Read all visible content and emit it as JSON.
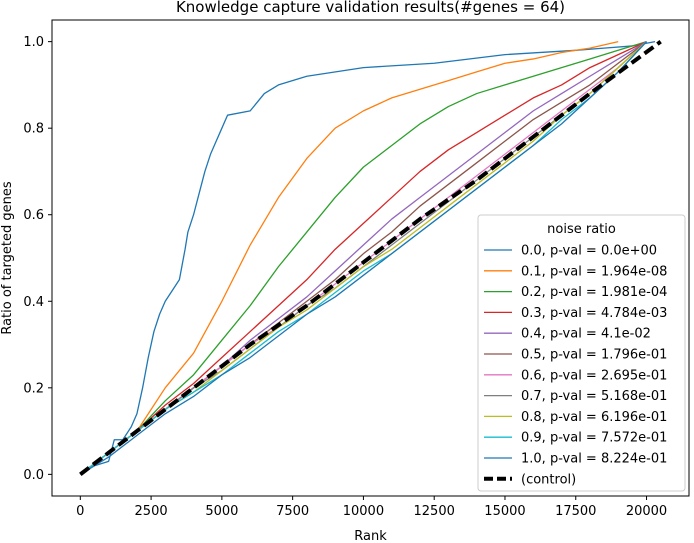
{
  "chart_data": {
    "type": "line",
    "title": "Knowledge capture validation results(#genes = 64)",
    "xlabel": "Rank",
    "ylabel": "Ratio of targeted genes",
    "xlim": [
      -1000,
      21500
    ],
    "ylim": [
      -0.05,
      1.05
    ],
    "xticks": [
      0,
      2500,
      5000,
      7500,
      10000,
      12500,
      15000,
      17500,
      20000
    ],
    "yticks": [
      0.0,
      0.2,
      0.4,
      0.6,
      0.8,
      1.0
    ],
    "legend": {
      "title": "noise ratio",
      "placement": "lower-right"
    },
    "grid": false,
    "series": [
      {
        "name": "0.0, p-val = 0.0e+00",
        "color": "#1f77b4",
        "x": [
          0,
          500,
          1000,
          1200,
          1500,
          1800,
          2000,
          2200,
          2400,
          2600,
          2800,
          3000,
          3200,
          3500,
          3700,
          3800,
          4000,
          4200,
          4400,
          4600,
          4800,
          5000,
          5200,
          6000,
          6500,
          7000,
          8000,
          10000,
          12500,
          15000,
          17500,
          18500,
          19500,
          20300
        ],
        "y": [
          0.0,
          0.02,
          0.03,
          0.08,
          0.08,
          0.11,
          0.14,
          0.2,
          0.27,
          0.33,
          0.37,
          0.4,
          0.42,
          0.45,
          0.52,
          0.56,
          0.6,
          0.65,
          0.7,
          0.74,
          0.77,
          0.8,
          0.83,
          0.84,
          0.88,
          0.9,
          0.92,
          0.94,
          0.95,
          0.97,
          0.98,
          0.985,
          0.99,
          1.0
        ]
      },
      {
        "name": "0.1, p-val = 1.964e-08",
        "color": "#ff7f0e",
        "x": [
          0,
          1000,
          2000,
          3000,
          4000,
          5000,
          6000,
          7000,
          8000,
          9000,
          10000,
          11000,
          12000,
          13000,
          14000,
          15000,
          16000,
          17000,
          18000,
          19000
        ],
        "y": [
          0.0,
          0.05,
          0.1,
          0.2,
          0.28,
          0.4,
          0.53,
          0.64,
          0.73,
          0.8,
          0.84,
          0.87,
          0.89,
          0.91,
          0.93,
          0.95,
          0.96,
          0.975,
          0.985,
          1.0
        ]
      },
      {
        "name": "0.2, p-val = 1.981e-04",
        "color": "#2ca02c",
        "x": [
          0,
          1000,
          2000,
          3000,
          4000,
          5000,
          6000,
          7000,
          8000,
          9000,
          10000,
          11000,
          12000,
          13000,
          14000,
          15000,
          16000,
          17000,
          18000,
          19000,
          20000
        ],
        "y": [
          0.0,
          0.05,
          0.1,
          0.17,
          0.23,
          0.31,
          0.39,
          0.48,
          0.56,
          0.64,
          0.71,
          0.76,
          0.81,
          0.85,
          0.88,
          0.9,
          0.92,
          0.94,
          0.96,
          0.98,
          1.0
        ]
      },
      {
        "name": "0.3, p-val = 4.784e-03",
        "color": "#d62728",
        "x": [
          0,
          1000,
          2000,
          3000,
          4000,
          5000,
          6000,
          7000,
          8000,
          9000,
          10000,
          11000,
          12000,
          13000,
          14000,
          15000,
          16000,
          17000,
          18000,
          19000,
          20000
        ],
        "y": [
          0.0,
          0.05,
          0.1,
          0.16,
          0.21,
          0.27,
          0.33,
          0.39,
          0.45,
          0.52,
          0.58,
          0.64,
          0.7,
          0.75,
          0.79,
          0.83,
          0.87,
          0.9,
          0.94,
          0.97,
          1.0
        ]
      },
      {
        "name": "0.4, p-val = 4.1e-02",
        "color": "#9467bd",
        "x": [
          0,
          1000,
          2000,
          3000,
          4000,
          5000,
          6000,
          7000,
          8000,
          9000,
          10000,
          11000,
          12000,
          13000,
          14000,
          15000,
          16000,
          17000,
          18000,
          19000,
          20000
        ],
        "y": [
          0.0,
          0.05,
          0.1,
          0.15,
          0.2,
          0.25,
          0.31,
          0.36,
          0.41,
          0.47,
          0.53,
          0.59,
          0.64,
          0.69,
          0.74,
          0.79,
          0.84,
          0.88,
          0.92,
          0.96,
          1.0
        ]
      },
      {
        "name": "0.5, p-val = 1.796e-01",
        "color": "#8c564b",
        "x": [
          0,
          1000,
          2000,
          3000,
          4000,
          5000,
          6000,
          7000,
          8000,
          9000,
          10000,
          11000,
          12000,
          13000,
          14000,
          15000,
          16000,
          17000,
          18000,
          19000,
          20000
        ],
        "y": [
          0.0,
          0.05,
          0.1,
          0.15,
          0.2,
          0.25,
          0.3,
          0.35,
          0.4,
          0.45,
          0.51,
          0.56,
          0.62,
          0.67,
          0.72,
          0.77,
          0.82,
          0.86,
          0.9,
          0.95,
          1.0
        ]
      },
      {
        "name": "0.6, p-val = 2.695e-01",
        "color": "#e377c2",
        "x": [
          0,
          1000,
          2000,
          3000,
          4000,
          5000,
          6000,
          7000,
          8000,
          9000,
          10000,
          11000,
          12000,
          13000,
          14000,
          15000,
          16000,
          17000,
          18000,
          19000,
          20000
        ],
        "y": [
          0.0,
          0.05,
          0.1,
          0.15,
          0.2,
          0.25,
          0.3,
          0.34,
          0.39,
          0.44,
          0.49,
          0.54,
          0.59,
          0.64,
          0.69,
          0.74,
          0.79,
          0.84,
          0.89,
          0.94,
          1.0
        ]
      },
      {
        "name": "0.7, p-val = 5.168e-01",
        "color": "#7f7f7f",
        "x": [
          0,
          1000,
          2000,
          3000,
          4000,
          5000,
          6000,
          7000,
          8000,
          9000,
          10000,
          11000,
          12000,
          13000,
          14000,
          15000,
          16000,
          17000,
          18000,
          19000,
          20000
        ],
        "y": [
          0.0,
          0.05,
          0.1,
          0.15,
          0.2,
          0.24,
          0.29,
          0.34,
          0.39,
          0.43,
          0.48,
          0.53,
          0.58,
          0.63,
          0.68,
          0.73,
          0.78,
          0.83,
          0.88,
          0.94,
          1.0
        ]
      },
      {
        "name": "0.8, p-val = 6.196e-01",
        "color": "#bcbd22",
        "x": [
          0,
          1000,
          2000,
          3000,
          4000,
          5000,
          6000,
          7000,
          8000,
          9000,
          10000,
          11000,
          12000,
          13000,
          14000,
          15000,
          16000,
          17000,
          18000,
          19000,
          20000
        ],
        "y": [
          0.0,
          0.05,
          0.1,
          0.15,
          0.19,
          0.24,
          0.29,
          0.34,
          0.38,
          0.43,
          0.48,
          0.52,
          0.57,
          0.62,
          0.67,
          0.72,
          0.77,
          0.83,
          0.88,
          0.94,
          1.0
        ]
      },
      {
        "name": "0.9, p-val = 7.572e-01",
        "color": "#17becf",
        "x": [
          0,
          1000,
          2000,
          3000,
          4000,
          5000,
          6000,
          7000,
          8000,
          9000,
          10000,
          11000,
          12000,
          13000,
          14000,
          15000,
          16000,
          17000,
          18000,
          19000,
          20000
        ],
        "y": [
          0.0,
          0.05,
          0.1,
          0.15,
          0.19,
          0.23,
          0.28,
          0.33,
          0.37,
          0.42,
          0.47,
          0.51,
          0.56,
          0.61,
          0.66,
          0.71,
          0.76,
          0.82,
          0.87,
          0.93,
          1.0
        ]
      },
      {
        "name": "1.0, p-val = 8.224e-01",
        "color": "#1f77b4",
        "x": [
          0,
          1000,
          2000,
          3000,
          4000,
          5000,
          6000,
          7000,
          8000,
          9000,
          10000,
          11000,
          12000,
          13000,
          14000,
          15000,
          16000,
          17000,
          18000,
          19000,
          20000
        ],
        "y": [
          0.0,
          0.04,
          0.09,
          0.14,
          0.18,
          0.23,
          0.27,
          0.32,
          0.37,
          0.41,
          0.46,
          0.51,
          0.56,
          0.61,
          0.66,
          0.71,
          0.76,
          0.81,
          0.87,
          0.93,
          1.0
        ]
      },
      {
        "name": "(control)",
        "color": "#000000",
        "dashed": true,
        "x": [
          0,
          2000,
          4000,
          6000,
          8000,
          10000,
          12000,
          14000,
          16000,
          18000,
          20500
        ],
        "y": [
          0.0,
          0.1,
          0.2,
          0.3,
          0.39,
          0.49,
          0.59,
          0.68,
          0.78,
          0.88,
          1.0
        ]
      }
    ]
  }
}
